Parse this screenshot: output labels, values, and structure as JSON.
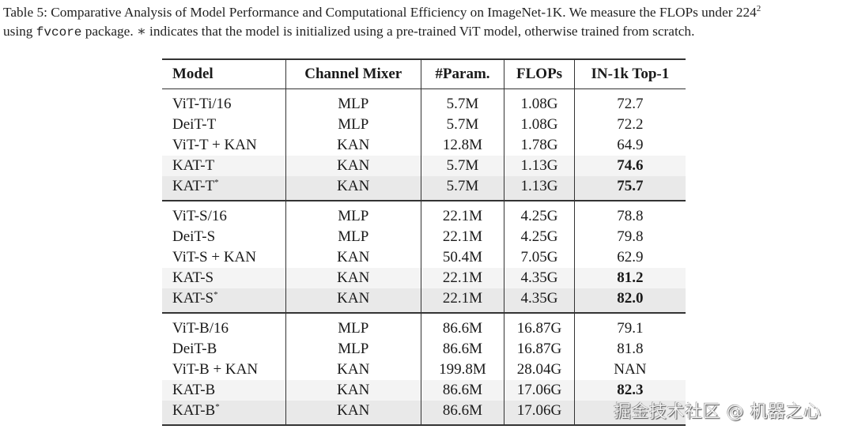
{
  "caption": {
    "part1": "Table 5: Comparative Analysis of Model Performance and Computational Efficiency on ImageNet-1K. We measure the FLOPs under 224",
    "superscript": "2",
    "part2": "using ",
    "code": "fvcore",
    "part3": " package. ∗ indicates that the model is initialized using a pre-trained ViT model, otherwise trained from scratch."
  },
  "table": {
    "headers": [
      "Model",
      "Channel Mixer",
      "#Param.",
      "FLOPs",
      "IN-1k Top-1"
    ],
    "groups": [
      {
        "rows": [
          {
            "model": "ViT-Ti/16",
            "star": "",
            "mixer": "MLP",
            "params": "5.7M",
            "flops": "1.08G",
            "top1": "72.7",
            "bold": false,
            "shade": ""
          },
          {
            "model": "DeiT-T",
            "star": "",
            "mixer": "MLP",
            "params": "5.7M",
            "flops": "1.08G",
            "top1": "72.2",
            "bold": false,
            "shade": ""
          },
          {
            "model": "ViT-T + KAN",
            "star": "",
            "mixer": "KAN",
            "params": "12.8M",
            "flops": "1.78G",
            "top1": "64.9",
            "bold": false,
            "shade": ""
          },
          {
            "model": "KAT-T",
            "star": "",
            "mixer": "KAN",
            "params": "5.7M",
            "flops": "1.13G",
            "top1": "74.6",
            "bold": true,
            "shade": "shade1"
          },
          {
            "model": "KAT-T",
            "star": "*",
            "mixer": "KAN",
            "params": "5.7M",
            "flops": "1.13G",
            "top1": "75.7",
            "bold": true,
            "shade": "shade2"
          }
        ]
      },
      {
        "rows": [
          {
            "model": "ViT-S/16",
            "star": "",
            "mixer": "MLP",
            "params": "22.1M",
            "flops": "4.25G",
            "top1": "78.8",
            "bold": false,
            "shade": ""
          },
          {
            "model": "DeiT-S",
            "star": "",
            "mixer": "MLP",
            "params": "22.1M",
            "flops": "4.25G",
            "top1": "79.8",
            "bold": false,
            "shade": ""
          },
          {
            "model": "ViT-S + KAN",
            "star": "",
            "mixer": "KAN",
            "params": "50.4M",
            "flops": "7.05G",
            "top1": "62.9",
            "bold": false,
            "shade": ""
          },
          {
            "model": "KAT-S",
            "star": "",
            "mixer": "KAN",
            "params": "22.1M",
            "flops": "4.35G",
            "top1": "81.2",
            "bold": true,
            "shade": "shade1"
          },
          {
            "model": "KAT-S",
            "star": "*",
            "mixer": "KAN",
            "params": "22.1M",
            "flops": "4.35G",
            "top1": "82.0",
            "bold": true,
            "shade": "shade2"
          }
        ]
      },
      {
        "rows": [
          {
            "model": "ViT-B/16",
            "star": "",
            "mixer": "MLP",
            "params": "86.6M",
            "flops": "16.87G",
            "top1": "79.1",
            "bold": false,
            "shade": ""
          },
          {
            "model": "DeiT-B",
            "star": "",
            "mixer": "MLP",
            "params": "86.6M",
            "flops": "16.87G",
            "top1": "81.8",
            "bold": false,
            "shade": ""
          },
          {
            "model": "ViT-B + KAN",
            "star": "",
            "mixer": "KAN",
            "params": "199.8M",
            "flops": "28.04G",
            "top1": "NAN",
            "bold": false,
            "shade": ""
          },
          {
            "model": "KAT-B",
            "star": "",
            "mixer": "KAN",
            "params": "86.6M",
            "flops": "17.06G",
            "top1": "82.3",
            "bold": true,
            "shade": "shade1"
          },
          {
            "model": "KAT-B",
            "star": "*",
            "mixer": "KAN",
            "params": "86.6M",
            "flops": "17.06G",
            "top1": "",
            "bold": false,
            "shade": "shade2"
          }
        ]
      }
    ]
  },
  "watermark": "掘金技术社区 @ 机器之心"
}
